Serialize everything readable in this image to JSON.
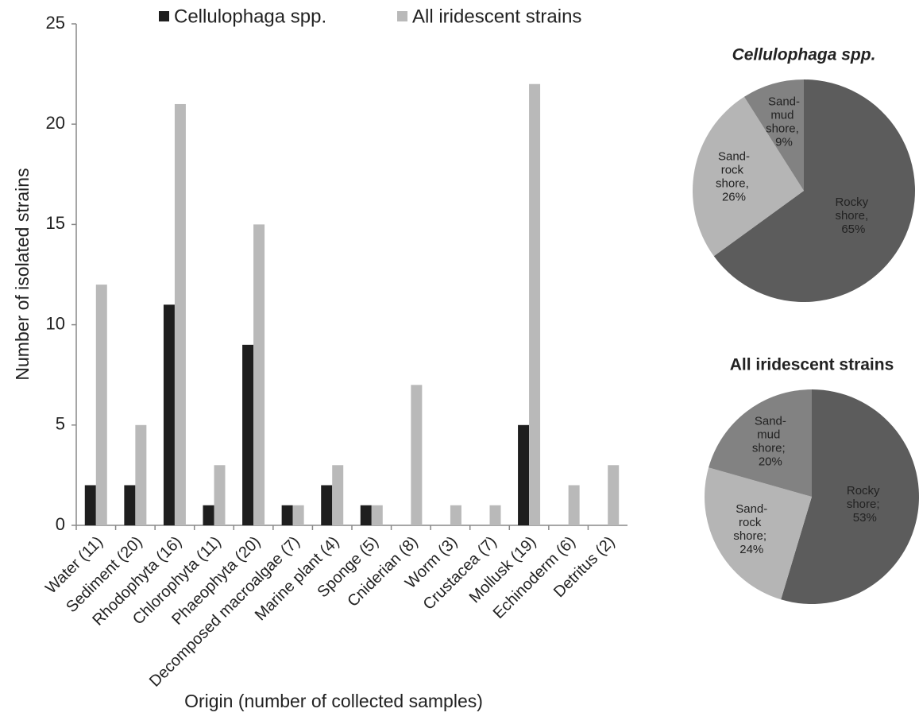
{
  "chart_data": [
    {
      "type": "bar",
      "xlabel": "Origin (number of collected samples)",
      "ylabel": "Number of isolated strains",
      "categories": [
        "Water (11)",
        "Sediment (20)",
        "Rhodophyta (16)",
        "Chlorophyta (11)",
        "Phaeophyta (20)",
        "Decomposed macroalgae (7)",
        "Marine plant (4)",
        "Sponge (5)",
        "Cniderian (8)",
        "Worm (3)",
        "Crustacea (7)",
        "Mollusk (19)",
        "Echinoderm (6)",
        "Detritus (2)"
      ],
      "series": [
        {
          "name": "Cellulophaga spp.",
          "color": "#1e1e1e",
          "values": [
            2,
            2,
            11,
            1,
            9,
            1,
            2,
            1,
            0,
            0,
            0,
            5,
            0,
            0
          ]
        },
        {
          "name": "All iridescent strains",
          "color": "#b9b9b9",
          "values": [
            12,
            5,
            21,
            3,
            15,
            1,
            3,
            1,
            7,
            1,
            1,
            22,
            2,
            3
          ]
        }
      ],
      "ylim": [
        0,
        25
      ],
      "yticks": [
        0,
        5,
        10,
        15,
        20,
        25
      ],
      "legend": "top"
    },
    {
      "type": "pie",
      "title": "Cellulophaga spp.",
      "values": [
        65,
        26,
        9
      ],
      "value_labels": [
        "Rocky shore, 65%",
        "Sand-rock shore, 26%",
        "Sand-mud shore, 9%"
      ],
      "colors": [
        "#5c5c5c",
        "#b5b5b5",
        "#828282"
      ]
    },
    {
      "type": "pie",
      "title": "All iridescent strains",
      "values": [
        53,
        24,
        20
      ],
      "value_labels": [
        "Rocky shore; 53%",
        "Sand-rock shore; 24%",
        "Sand-mud shore; 20%"
      ],
      "colors": [
        "#5c5c5c",
        "#b5b5b5",
        "#828282"
      ]
    }
  ]
}
